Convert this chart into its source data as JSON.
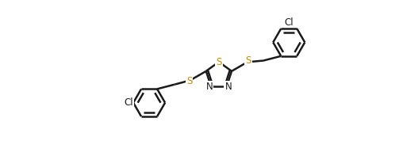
{
  "bg_color": "#ffffff",
  "line_color": "#1a1a1a",
  "bond_width": 1.8,
  "label_color_S": "#cc8800",
  "label_color_N": "#1a1a1a",
  "label_color_Cl": "#1a1a1a",
  "font_size": 9,
  "figsize": [
    5.03,
    2.02
  ],
  "dpi": 100,
  "xlim": [
    0.0,
    5.03
  ],
  "ylim": [
    0.0,
    2.02
  ]
}
